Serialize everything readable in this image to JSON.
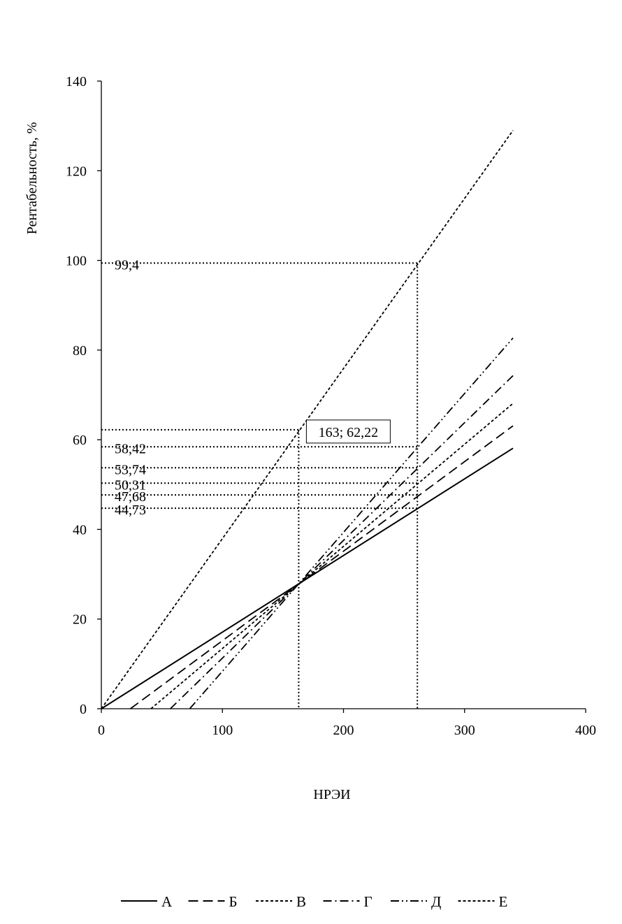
{
  "chart_data": {
    "type": "line",
    "xlabel": "НРЭИ",
    "ylabel": "Рентабельность, %",
    "xlim": [
      0,
      400
    ],
    "ylim": [
      0,
      140
    ],
    "xticks": [
      0,
      100,
      200,
      300,
      400
    ],
    "yticks": [
      0,
      20,
      40,
      60,
      80,
      100,
      120,
      140
    ],
    "grid": false,
    "legend_position": "bottom",
    "series": [
      {
        "name": "А",
        "dash": "solid",
        "points": [
          [
            0,
            0
          ],
          [
            340,
            58.1
          ]
        ]
      },
      {
        "name": "Б",
        "dash": "long-dash",
        "points": [
          [
            24,
            0
          ],
          [
            340,
            63.1
          ]
        ]
      },
      {
        "name": "В",
        "dash": "short-dash",
        "points": [
          [
            41,
            0
          ],
          [
            340,
            68.1
          ]
        ]
      },
      {
        "name": "Г",
        "dash": "dash-dot",
        "points": [
          [
            57,
            0
          ],
          [
            340,
            74.3
          ]
        ]
      },
      {
        "name": "Д",
        "dash": "dash-dot-dot",
        "points": [
          [
            73,
            0
          ],
          [
            340,
            82.7
          ]
        ]
      },
      {
        "name": "Е",
        "dash": "short-dash",
        "points": [
          [
            0,
            0
          ],
          [
            340,
            129
          ]
        ]
      }
    ],
    "reference_lines": {
      "horizontal": [
        {
          "y": 99.4,
          "x_end": 261,
          "label": "99,4"
        },
        {
          "y": 62.22,
          "x_end": 163,
          "label": ""
        },
        {
          "y": 58.42,
          "x_end": 261,
          "label": "58,42"
        },
        {
          "y": 53.74,
          "x_end": 261,
          "label": "53,74"
        },
        {
          "y": 50.31,
          "x_end": 261,
          "label": "50,31"
        },
        {
          "y": 47.68,
          "x_end": 261,
          "label": "47,68"
        },
        {
          "y": 44.73,
          "x_end": 261,
          "label": "44,73"
        }
      ],
      "vertical": [
        {
          "x": 163,
          "y_end": 62.22
        },
        {
          "x": 261,
          "y_end": 99.4
        }
      ]
    },
    "annotation": {
      "text": "163; 62,22",
      "x": 163,
      "y": 62.22
    }
  }
}
